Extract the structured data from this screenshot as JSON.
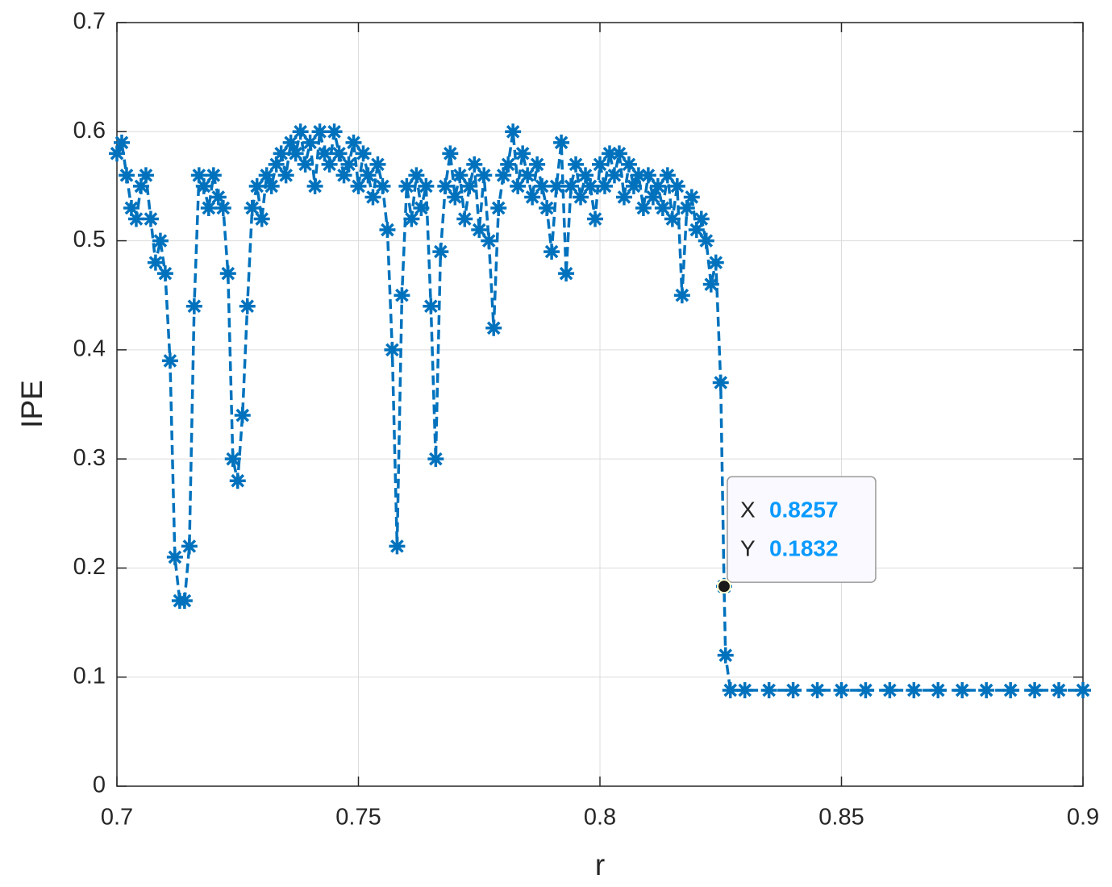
{
  "chart_data": {
    "type": "line",
    "xlabel": "r",
    "ylabel": "IPE",
    "x": [
      0.7,
      0.701,
      0.702,
      0.703,
      0.704,
      0.705,
      0.706,
      0.707,
      0.708,
      0.709,
      0.71,
      0.711,
      0.712,
      0.713,
      0.714,
      0.715,
      0.716,
      0.717,
      0.718,
      0.719,
      0.72,
      0.721,
      0.722,
      0.723,
      0.724,
      0.725,
      0.726,
      0.727,
      0.728,
      0.729,
      0.73,
      0.731,
      0.732,
      0.733,
      0.734,
      0.735,
      0.736,
      0.737,
      0.738,
      0.739,
      0.74,
      0.741,
      0.742,
      0.743,
      0.744,
      0.745,
      0.746,
      0.747,
      0.748,
      0.749,
      0.75,
      0.751,
      0.752,
      0.753,
      0.754,
      0.755,
      0.756,
      0.757,
      0.758,
      0.759,
      0.76,
      0.761,
      0.762,
      0.763,
      0.764,
      0.765,
      0.766,
      0.767,
      0.768,
      0.769,
      0.77,
      0.771,
      0.772,
      0.773,
      0.774,
      0.775,
      0.776,
      0.777,
      0.778,
      0.779,
      0.78,
      0.781,
      0.782,
      0.783,
      0.784,
      0.785,
      0.786,
      0.787,
      0.788,
      0.789,
      0.79,
      0.791,
      0.792,
      0.793,
      0.794,
      0.795,
      0.796,
      0.797,
      0.798,
      0.799,
      0.8,
      0.801,
      0.802,
      0.803,
      0.804,
      0.805,
      0.806,
      0.807,
      0.808,
      0.809,
      0.81,
      0.811,
      0.812,
      0.813,
      0.814,
      0.815,
      0.816,
      0.817,
      0.818,
      0.819,
      0.82,
      0.821,
      0.822,
      0.823,
      0.824,
      0.825,
      0.8257,
      0.826,
      0.827,
      0.83,
      0.835,
      0.84,
      0.845,
      0.85,
      0.855,
      0.86,
      0.865,
      0.87,
      0.875,
      0.88,
      0.885,
      0.89,
      0.895,
      0.9
    ],
    "series": [
      {
        "color": "#0072bd",
        "values": [
          0.58,
          0.59,
          0.56,
          0.53,
          0.52,
          0.55,
          0.56,
          0.52,
          0.48,
          0.5,
          0.47,
          0.39,
          0.21,
          0.17,
          0.17,
          0.22,
          0.44,
          0.56,
          0.55,
          0.53,
          0.56,
          0.54,
          0.53,
          0.47,
          0.3,
          0.28,
          0.34,
          0.44,
          0.53,
          0.55,
          0.52,
          0.56,
          0.55,
          0.57,
          0.58,
          0.56,
          0.59,
          0.58,
          0.6,
          0.57,
          0.59,
          0.55,
          0.6,
          0.58,
          0.57,
          0.6,
          0.58,
          0.56,
          0.57,
          0.59,
          0.55,
          0.58,
          0.56,
          0.54,
          0.57,
          0.55,
          0.51,
          0.4,
          0.22,
          0.45,
          0.55,
          0.52,
          0.56,
          0.53,
          0.55,
          0.44,
          0.3,
          0.49,
          0.55,
          0.58,
          0.54,
          0.56,
          0.52,
          0.55,
          0.57,
          0.51,
          0.56,
          0.5,
          0.42,
          0.53,
          0.56,
          0.57,
          0.6,
          0.55,
          0.58,
          0.56,
          0.54,
          0.57,
          0.55,
          0.53,
          0.49,
          0.55,
          0.59,
          0.47,
          0.55,
          0.57,
          0.54,
          0.56,
          0.55,
          0.52,
          0.57,
          0.55,
          0.58,
          0.56,
          0.58,
          0.54,
          0.57,
          0.55,
          0.56,
          0.53,
          0.56,
          0.54,
          0.55,
          0.53,
          0.56,
          0.52,
          0.55,
          0.45,
          0.53,
          0.54,
          0.51,
          0.52,
          0.5,
          0.46,
          0.48,
          0.37,
          0.1832,
          0.12,
          0.088,
          0.088,
          0.088,
          0.088,
          0.088,
          0.088,
          0.088,
          0.088,
          0.088,
          0.088,
          0.088,
          0.088,
          0.088,
          0.088,
          0.088,
          0.088
        ]
      }
    ],
    "xlim": [
      0.7,
      0.9
    ],
    "xticks": [
      0.7,
      0.75,
      0.8,
      0.85,
      0.9
    ],
    "ylim": [
      0,
      0.7
    ],
    "yticks": [
      0,
      0.1,
      0.2,
      0.3,
      0.4,
      0.5,
      0.6,
      0.7
    ],
    "grid": true,
    "marker": "*",
    "datatip": {
      "x_label": "X",
      "y_label": "Y",
      "x": 0.8257,
      "y": 0.1832
    }
  }
}
